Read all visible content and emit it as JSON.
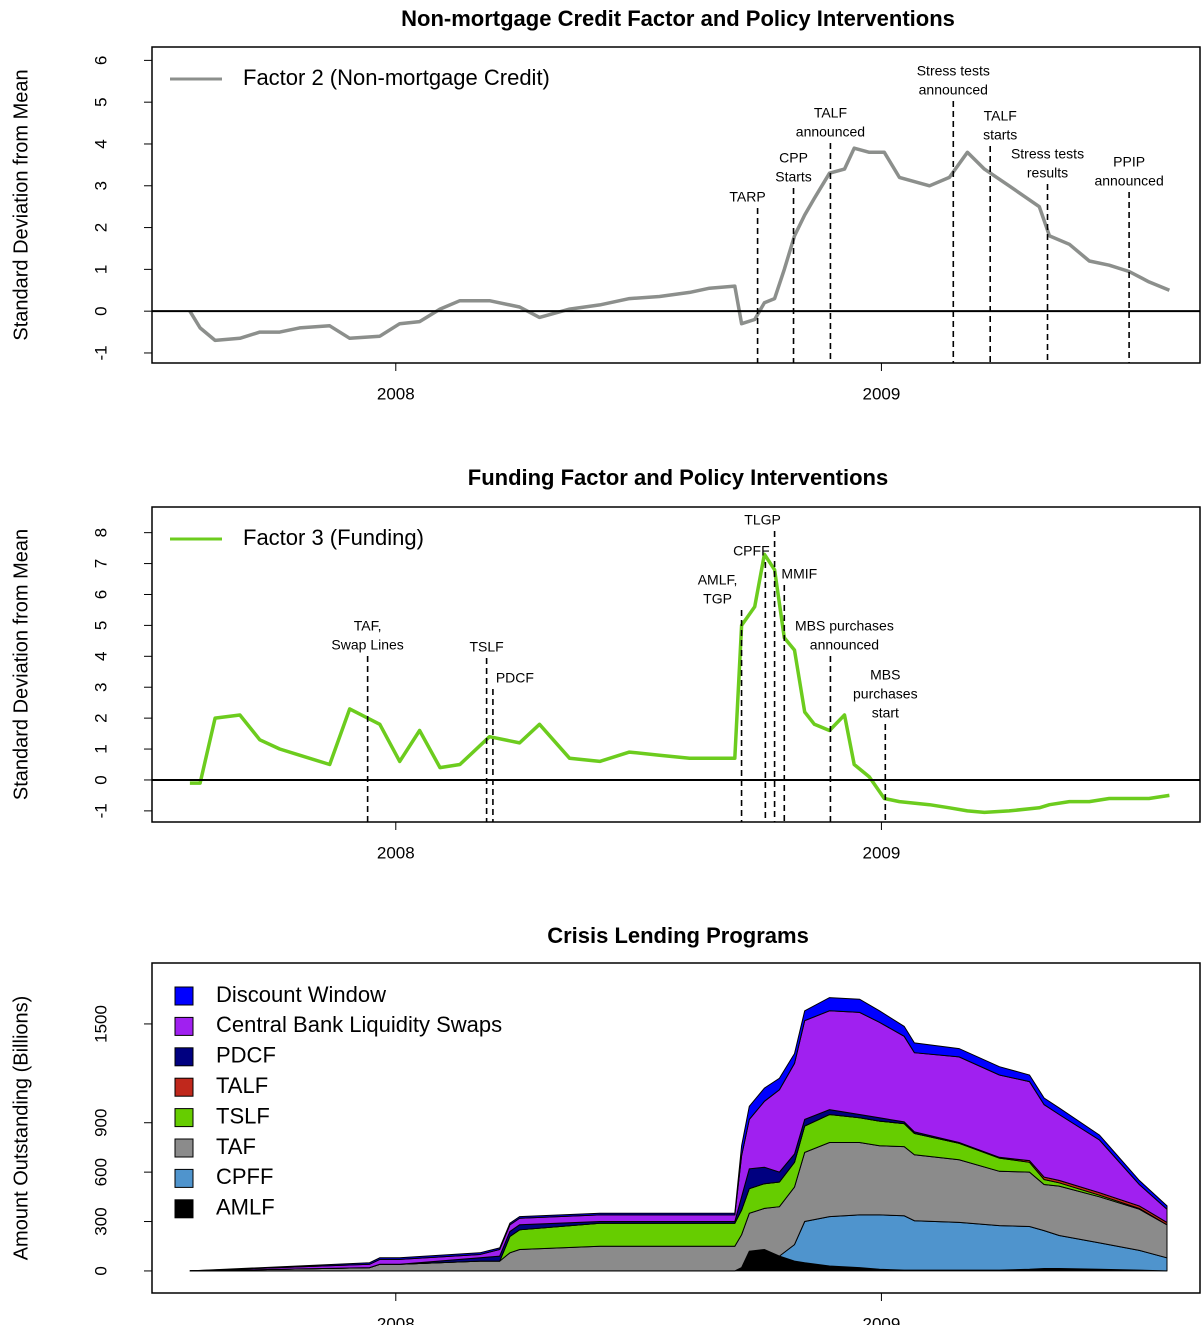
{
  "chart_data": [
    {
      "type": "line",
      "title": "Non-mortgage Credit Factor and Policy Interventions",
      "ylabel": "Standard Deviation from Mean",
      "xlim": [
        2007.498,
        2009.656
      ],
      "xticks": [
        2008,
        2009
      ],
      "ylim": [
        -1.24,
        6.32
      ],
      "yticks": [
        -1,
        0,
        1,
        2,
        3,
        4,
        5,
        6
      ],
      "legend": "top-left",
      "zero_line": true,
      "x": [
        2007.576,
        2007.597,
        2007.628,
        2007.679,
        2007.72,
        2007.761,
        2007.802,
        2007.864,
        2007.905,
        2007.967,
        2008.008,
        2008.049,
        2008.091,
        2008.132,
        2008.193,
        2008.255,
        2008.296,
        2008.358,
        2008.42,
        2008.481,
        2008.543,
        2008.605,
        2008.646,
        2008.698,
        2008.712,
        2008.739,
        2008.759,
        2008.78,
        2008.8,
        2008.821,
        2008.842,
        2008.862,
        2008.893,
        2008.924,
        2008.944,
        2008.975,
        2009.006,
        2009.037,
        2009.099,
        2009.14,
        2009.177,
        2009.212,
        2009.263,
        2009.325,
        2009.346,
        2009.387,
        2009.428,
        2009.469,
        2009.51,
        2009.551,
        2009.593
      ],
      "series": [
        {
          "name": "Factor 2 (Non-mortgage Credit)",
          "color": "#8c8f8c",
          "values": [
            0,
            -0.4,
            -0.7,
            -0.65,
            -0.5,
            -0.5,
            -0.4,
            -0.35,
            -0.65,
            -0.6,
            -0.3,
            -0.25,
            0.05,
            0.25,
            0.25,
            0.1,
            -0.15,
            0.05,
            0.15,
            0.3,
            0.35,
            0.45,
            0.55,
            0.6,
            -0.3,
            -0.2,
            0.2,
            0.3,
            1.0,
            1.8,
            2.3,
            2.7,
            3.3,
            3.4,
            3.9,
            3.8,
            3.8,
            3.2,
            3.0,
            3.2,
            3.8,
            3.4,
            3.0,
            2.5,
            1.8,
            1.6,
            1.2,
            1.1,
            0.95,
            0.7,
            0.5
          ]
        }
      ],
      "annotations": [
        {
          "label": [
            "TARP"
          ],
          "x": 2008.745
        },
        {
          "label": [
            "CPP",
            "Starts"
          ],
          "x": 2008.819
        },
        {
          "label": [
            "TALF",
            "announced"
          ],
          "x": 2008.895
        },
        {
          "label": [
            "Stress tests",
            "announced"
          ],
          "x": 2009.148
        },
        {
          "label": [
            "TALF",
            "starts"
          ],
          "x": 2009.224
        },
        {
          "label": [
            "Stress tests",
            "results"
          ],
          "x": 2009.342
        },
        {
          "label": [
            "PPIP",
            "announced"
          ],
          "x": 2009.51
        }
      ]
    },
    {
      "type": "line",
      "title": "Funding Factor and Policy Interventions",
      "ylabel": "Standard Deviation from Mean",
      "xlim": [
        2007.498,
        2009.656
      ],
      "xticks": [
        2008,
        2009
      ],
      "ylim": [
        -1.36,
        8.83
      ],
      "yticks": [
        -1,
        0,
        1,
        2,
        3,
        4,
        5,
        6,
        7,
        8
      ],
      "legend": "top-left",
      "zero_line": true,
      "x": [
        2007.576,
        2007.597,
        2007.628,
        2007.679,
        2007.72,
        2007.761,
        2007.802,
        2007.864,
        2007.905,
        2007.967,
        2008.008,
        2008.049,
        2008.091,
        2008.132,
        2008.193,
        2008.255,
        2008.296,
        2008.358,
        2008.42,
        2008.481,
        2008.543,
        2008.605,
        2008.646,
        2008.698,
        2008.712,
        2008.739,
        2008.759,
        2008.78,
        2008.8,
        2008.821,
        2008.842,
        2008.862,
        2008.893,
        2008.924,
        2008.944,
        2008.975,
        2009.006,
        2009.037,
        2009.099,
        2009.14,
        2009.177,
        2009.212,
        2009.263,
        2009.325,
        2009.346,
        2009.387,
        2009.428,
        2009.469,
        2009.51,
        2009.551,
        2009.593
      ],
      "series": [
        {
          "name": "Factor 3 (Funding)",
          "color": "#6ccc1e",
          "values": [
            -0.1,
            -0.1,
            2.0,
            2.1,
            1.3,
            1.0,
            0.8,
            0.5,
            2.3,
            1.8,
            0.6,
            1.6,
            0.4,
            0.5,
            1.4,
            1.2,
            1.8,
            0.7,
            0.6,
            0.9,
            0.8,
            0.7,
            0.7,
            0.7,
            5.0,
            5.6,
            7.3,
            6.8,
            4.6,
            4.2,
            2.2,
            1.8,
            1.6,
            2.1,
            0.5,
            0.1,
            -0.6,
            -0.7,
            -0.8,
            -0.9,
            -1.0,
            -1.05,
            -1.0,
            -0.9,
            -0.8,
            -0.7,
            -0.7,
            -0.6,
            -0.6,
            -0.6,
            -0.5
          ]
        }
      ],
      "annotations": [
        {
          "label": [
            "TAF,",
            "Swap Lines"
          ],
          "x": 2007.942
        },
        {
          "label": [
            "TSLF"
          ],
          "x": 2008.187
        },
        {
          "label": [
            "PDCF"
          ],
          "x": 2008.2
        },
        {
          "label": [
            "AMLF,",
            "TGP"
          ],
          "x": 2008.712
        },
        {
          "label": [
            "CPFF"
          ],
          "x": 2008.761
        },
        {
          "label": [
            "TLGP"
          ],
          "x": 2008.78
        },
        {
          "label": [
            "MMIF"
          ],
          "x": 2008.8
        },
        {
          "label": [
            "MBS purchases",
            "announced"
          ],
          "x": 2008.895
        },
        {
          "label": [
            "MBS",
            "purchases",
            "start"
          ],
          "x": 2009.008
        }
      ]
    },
    {
      "type": "stacked_area",
      "title": "Crisis Lending Programs",
      "ylabel": "Amount Outstanding (Billions)",
      "xlim": [
        2007.498,
        2009.656
      ],
      "xticks": [
        2008,
        2009
      ],
      "ylim": [
        -134,
        1870
      ],
      "yticks": [
        0,
        300,
        600,
        900,
        1500
      ],
      "legend": "top-left",
      "x": [
        2007.576,
        2007.946,
        2007.967,
        2008.008,
        2008.173,
        2008.214,
        2008.235,
        2008.255,
        2008.42,
        2008.626,
        2008.698,
        2008.712,
        2008.728,
        2008.759,
        2008.79,
        2008.821,
        2008.842,
        2008.893,
        2008.955,
        2008.996,
        2009.047,
        2009.068,
        2009.16,
        2009.243,
        2009.305,
        2009.335,
        2009.366,
        2009.449,
        2009.531,
        2009.588
      ],
      "series": [
        {
          "name": "AMLF",
          "color": "#000000",
          "values": [
            0,
            0,
            0,
            0,
            0,
            0,
            0,
            0,
            0,
            0,
            0,
            20,
            120,
            130,
            90,
            60,
            50,
            30,
            20,
            10,
            5,
            5,
            5,
            5,
            10,
            15,
            15,
            10,
            5,
            0
          ]
        },
        {
          "name": "CPFF",
          "color": "#4f94cd",
          "values": [
            0,
            0,
            0,
            0,
            0,
            0,
            0,
            0,
            0,
            0,
            0,
            0,
            0,
            0,
            0,
            100,
            250,
            300,
            320,
            330,
            330,
            300,
            290,
            270,
            260,
            230,
            200,
            160,
            120,
            80
          ]
        },
        {
          "name": "TAF",
          "color": "#8b8b8b",
          "values": [
            0,
            20,
            40,
            40,
            60,
            60,
            110,
            130,
            150,
            150,
            150,
            200,
            230,
            250,
            300,
            350,
            420,
            450,
            440,
            420,
            420,
            400,
            380,
            330,
            330,
            280,
            300,
            280,
            250,
            200
          ]
        },
        {
          "name": "TSLF",
          "color": "#66cd00",
          "values": [
            0,
            0,
            0,
            0,
            0,
            0,
            100,
            120,
            140,
            140,
            140,
            150,
            150,
            150,
            150,
            150,
            160,
            170,
            150,
            150,
            140,
            130,
            100,
            80,
            60,
            30,
            20,
            10,
            5,
            0
          ]
        },
        {
          "name": "TALF",
          "color": "#c0281c",
          "values": [
            0,
            0,
            0,
            0,
            0,
            0,
            0,
            0,
            0,
            0,
            0,
            0,
            0,
            0,
            0,
            0,
            0,
            0,
            0,
            0,
            0,
            0,
            0,
            5,
            10,
            15,
            15,
            15,
            15,
            15
          ]
        },
        {
          "name": "PDCF",
          "color": "#000080",
          "values": [
            0,
            0,
            0,
            0,
            20,
            30,
            30,
            30,
            10,
            10,
            10,
            80,
            120,
            100,
            60,
            50,
            40,
            30,
            20,
            20,
            10,
            10,
            5,
            0,
            0,
            0,
            0,
            0,
            0,
            0
          ]
        },
        {
          "name": "Central Bank Liquidity Swaps",
          "color": "#a020f0",
          "values": [
            0,
            20,
            30,
            30,
            20,
            40,
            40,
            40,
            40,
            40,
            40,
            250,
            300,
            400,
            500,
            550,
            600,
            600,
            620,
            580,
            520,
            480,
            520,
            500,
            480,
            440,
            400,
            320,
            130,
            80
          ]
        },
        {
          "name": "Discount Window",
          "color": "#0000ff",
          "values": [
            0,
            10,
            10,
            10,
            10,
            10,
            10,
            10,
            10,
            10,
            10,
            60,
            80,
            80,
            70,
            60,
            60,
            80,
            80,
            70,
            60,
            60,
            50,
            50,
            40,
            40,
            40,
            30,
            25,
            20
          ]
        }
      ]
    }
  ]
}
